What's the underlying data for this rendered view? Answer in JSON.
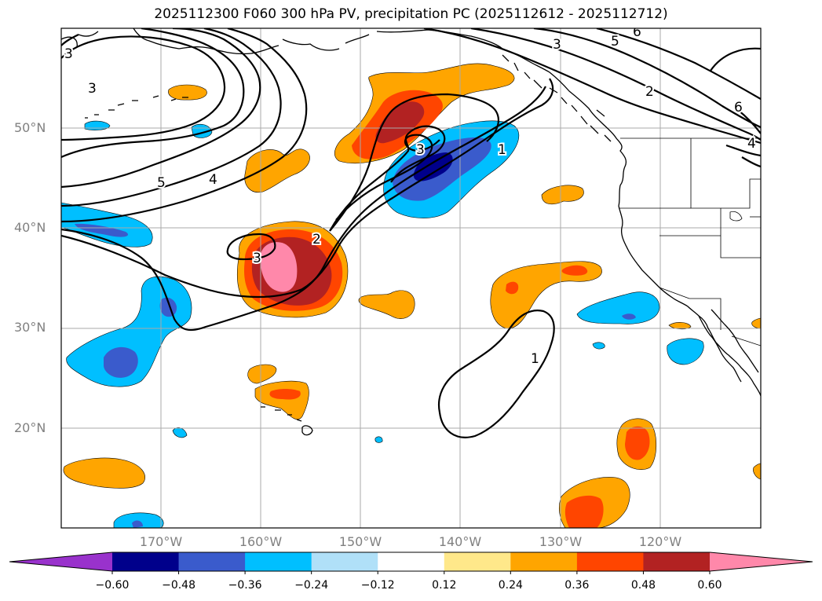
{
  "title": "2025112300 F060 300 hPa PV, precipitation PC (2025112612 - 2025112712)",
  "lat_labels": [
    "50°N",
    "40°N",
    "30°N",
    "20°N"
  ],
  "lon_labels": [
    "170°W",
    "160°W",
    "150°W",
    "140°W",
    "130°W",
    "120°W"
  ],
  "colorbar": {
    "ticks": [
      "−0.60",
      "−0.48",
      "−0.36",
      "−0.24",
      "−0.12",
      "0.12",
      "0.24",
      "0.36",
      "0.48",
      "0.60"
    ],
    "colors": [
      "#9932cc",
      "#00008b",
      "#3a5bcc",
      "#00bfff",
      "#b0e0f8",
      "#ffffff",
      "#ffe88a",
      "#ffa500",
      "#ff4500",
      "#b22222",
      "#ff88aa"
    ]
  },
  "contour_labels": [
    "3",
    "3",
    "5",
    "4",
    "3",
    "2",
    "3",
    "1",
    "1",
    "3",
    "5",
    "2",
    "6",
    "4",
    "6"
  ]
}
